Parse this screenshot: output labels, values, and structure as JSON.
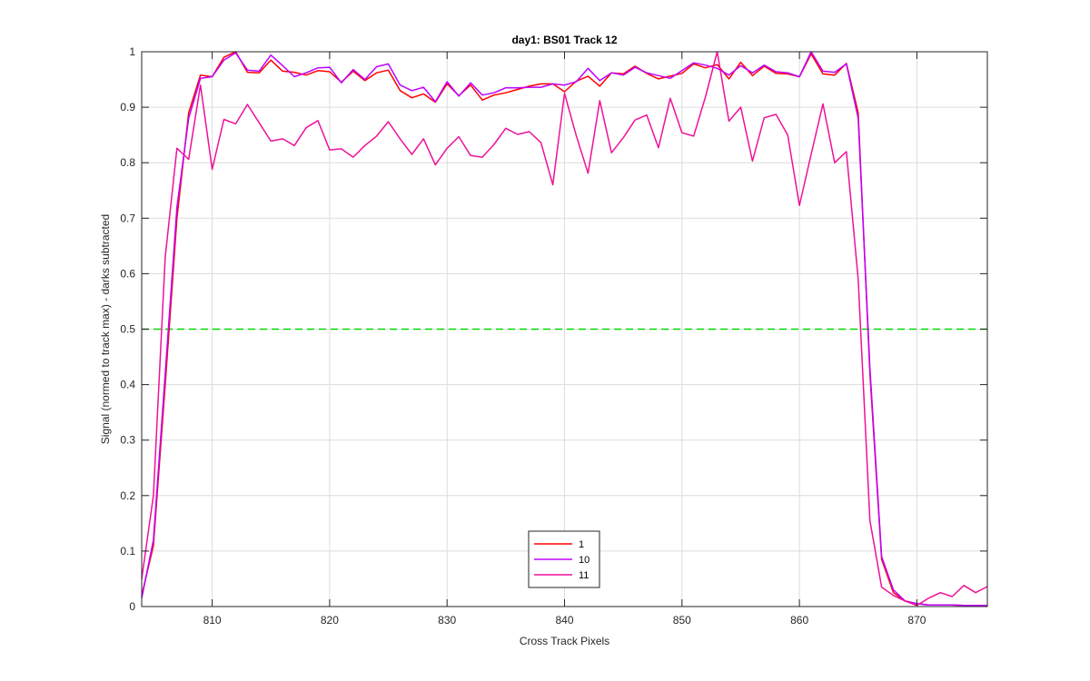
{
  "chart_data": {
    "type": "line",
    "title": "day1: BS01  Track 12",
    "xlabel": "Cross Track Pixels",
    "ylabel": "Signal (normed to track max) - darks subtracted",
    "xlim": [
      804,
      876
    ],
    "ylim": [
      0,
      1
    ],
    "xticks": [
      810,
      820,
      830,
      840,
      850,
      860,
      870
    ],
    "yticks": [
      0,
      0.1,
      0.2,
      0.3,
      0.4,
      0.5,
      0.6,
      0.7,
      0.8,
      0.9,
      1
    ],
    "ytick_labels": [
      "0",
      "0.1",
      "0.2",
      "0.3",
      "0.4",
      "0.5",
      "0.6",
      "0.7",
      "0.8",
      "0.9",
      "1"
    ],
    "grid": true,
    "legend_position": "bottom-center",
    "x": [
      804,
      805,
      806,
      807,
      808,
      809,
      810,
      811,
      812,
      813,
      814,
      815,
      816,
      817,
      818,
      819,
      820,
      821,
      822,
      823,
      824,
      825,
      826,
      827,
      828,
      829,
      830,
      831,
      832,
      833,
      834,
      835,
      836,
      837,
      838,
      839,
      840,
      841,
      842,
      843,
      844,
      845,
      846,
      847,
      848,
      849,
      850,
      851,
      852,
      853,
      854,
      855,
      856,
      857,
      858,
      859,
      860,
      861,
      862,
      863,
      864,
      865,
      866,
      867,
      868,
      869,
      870,
      871,
      872,
      873,
      874,
      875,
      876
    ],
    "series": [
      {
        "name": "1",
        "color": "#ff0000",
        "values": [
          0.02,
          0.11,
          0.4,
          0.7,
          0.89,
          0.958,
          0.955,
          0.99,
          1.0,
          0.963,
          0.962,
          0.985,
          0.965,
          0.963,
          0.958,
          0.966,
          0.964,
          0.945,
          0.965,
          0.948,
          0.962,
          0.967,
          0.93,
          0.917,
          0.924,
          0.909,
          0.942,
          0.921,
          0.94,
          0.913,
          0.922,
          0.926,
          0.932,
          0.938,
          0.942,
          0.942,
          0.928,
          0.947,
          0.956,
          0.938,
          0.962,
          0.96,
          0.974,
          0.961,
          0.951,
          0.956,
          0.961,
          0.978,
          0.971,
          0.977,
          0.951,
          0.981,
          0.957,
          0.974,
          0.961,
          0.96,
          0.955,
          0.996,
          0.96,
          0.958,
          0.979,
          0.89,
          0.42,
          0.085,
          0.025,
          0.01,
          0.005,
          0.003,
          0.003,
          0.003,
          0.002,
          0.002,
          0.002
        ]
      },
      {
        "name": "10",
        "color": "#bf00ff",
        "values": [
          0.015,
          0.12,
          0.42,
          0.72,
          0.88,
          0.952,
          0.955,
          0.985,
          0.998,
          0.967,
          0.965,
          0.994,
          0.975,
          0.955,
          0.962,
          0.971,
          0.972,
          0.944,
          0.968,
          0.95,
          0.973,
          0.978,
          0.94,
          0.93,
          0.936,
          0.91,
          0.946,
          0.92,
          0.944,
          0.922,
          0.926,
          0.935,
          0.935,
          0.936,
          0.936,
          0.942,
          0.94,
          0.946,
          0.97,
          0.948,
          0.962,
          0.958,
          0.972,
          0.962,
          0.957,
          0.952,
          0.966,
          0.98,
          0.976,
          0.97,
          0.958,
          0.975,
          0.962,
          0.976,
          0.964,
          0.962,
          0.955,
          1.0,
          0.965,
          0.963,
          0.978,
          0.88,
          0.43,
          0.09,
          0.03,
          0.01,
          0.005,
          0.003,
          0.003,
          0.003,
          0.002,
          0.002,
          0.002
        ]
      },
      {
        "name": "11",
        "color": "#ee1199",
        "values": [
          0.05,
          0.2,
          0.63,
          0.826,
          0.806,
          0.94,
          0.788,
          0.878,
          0.87,
          0.905,
          0.872,
          0.839,
          0.843,
          0.831,
          0.863,
          0.876,
          0.823,
          0.825,
          0.81,
          0.831,
          0.848,
          0.874,
          0.843,
          0.815,
          0.843,
          0.796,
          0.826,
          0.847,
          0.813,
          0.81,
          0.833,
          0.862,
          0.851,
          0.856,
          0.836,
          0.76,
          0.925,
          0.849,
          0.781,
          0.912,
          0.818,
          0.845,
          0.877,
          0.886,
          0.827,
          0.916,
          0.854,
          0.848,
          0.919,
          1.0,
          0.875,
          0.9,
          0.803,
          0.881,
          0.887,
          0.85,
          0.723,
          0.815,
          0.906,
          0.8,
          0.82,
          0.59,
          0.155,
          0.035,
          0.02,
          0.01,
          0.002,
          0.015,
          0.025,
          0.018,
          0.038,
          0.025,
          0.036
        ]
      }
    ],
    "reference_line": {
      "y": 0.5,
      "color": "#00dd00",
      "style": "dashed"
    }
  }
}
